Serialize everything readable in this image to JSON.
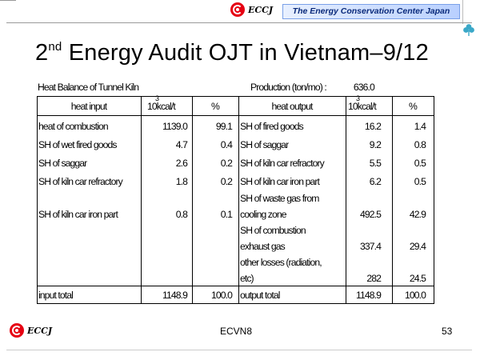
{
  "header": {
    "logo_text": "ECCJ",
    "banner": "The Energy Conservation Center Japan"
  },
  "title_prefix": "2",
  "title_sup": "nd",
  "title_rest": " Energy Audit OJT in Vietnam–9/12",
  "table_caption": "Heat Balance of Tunnel Kiln",
  "production": {
    "label": "Production (ton/mo) :",
    "value": "636.0"
  },
  "columns": {
    "heat_input": "heat input",
    "unit_base": "10",
    "unit_exp": "3",
    "unit_rest": "kcal/t",
    "percent": "%",
    "heat_output": "heat output"
  },
  "inputs": [
    {
      "name": "heat of combustion",
      "value": "1139.0",
      "pct": "99.1"
    },
    {
      "name": "SH of wet fired goods",
      "value": "4.7",
      "pct": "0.4"
    },
    {
      "name": "SH of saggar",
      "value": "2.6",
      "pct": "0.2"
    },
    {
      "name": "SH of kiln car refractory",
      "value": "1.8",
      "pct": "0.2"
    },
    {
      "name": "SH of kiln car iron part",
      "value": "0.8",
      "pct": "0.1"
    }
  ],
  "outputs": [
    {
      "name": "SH of fired goods",
      "value": "16.2",
      "pct": "1.4"
    },
    {
      "name": "SH of saggar",
      "value": "9.2",
      "pct": "0.8"
    },
    {
      "name": "SH of kiln car refractory",
      "value": "5.5",
      "pct": "0.5"
    },
    {
      "name": "SH of kiln car iron part",
      "value": "6.2",
      "pct": "0.5"
    },
    {
      "name_line1": "SH of waste gas from",
      "name_line2": "cooling zone",
      "value": "492.5",
      "pct": "42.9"
    },
    {
      "name_line1": "SH of combustion",
      "name_line2": "exhaust gas",
      "value": "337.4",
      "pct": "29.4"
    },
    {
      "name_line1": "other losses (radiation,",
      "name_line2": "etc)",
      "value": "282",
      "pct": "24.5"
    }
  ],
  "totals": {
    "input_label": "input total",
    "input_value": "1148.9",
    "input_pct": "100.0",
    "output_label": "output total",
    "output_value": "1148.9",
    "output_pct": "100.0"
  },
  "footer": {
    "center": "ECVN8",
    "page": "53",
    "logo_text": "ECCJ"
  },
  "colors": {
    "logo_red": "#e60012",
    "banner_text": "#0a2a7a",
    "clover": "#3aa8c8"
  }
}
